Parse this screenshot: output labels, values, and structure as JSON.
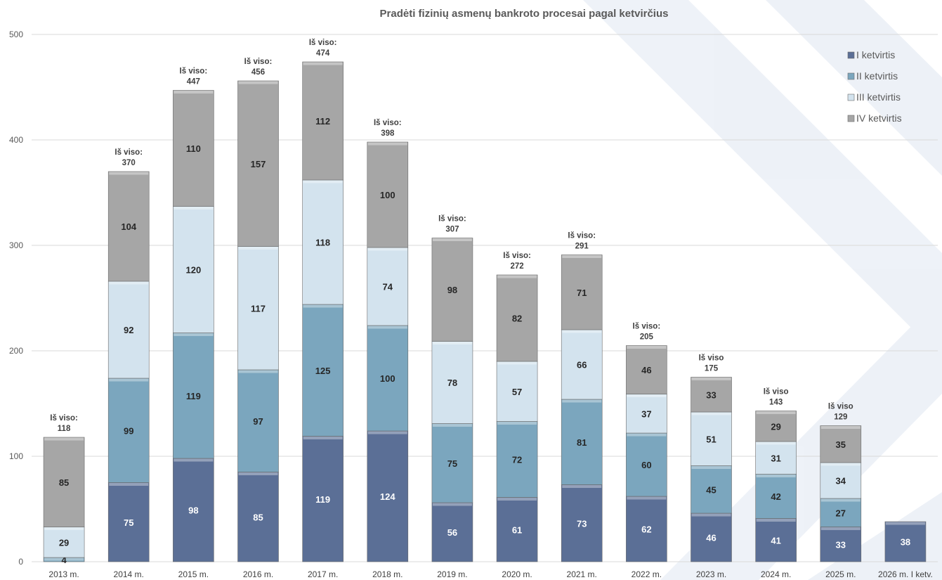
{
  "chart_data": {
    "type": "bar",
    "stacked": true,
    "title": "Pradėti fizinių asmenų bankroto procesai pagal ketvirčius",
    "categories": [
      "2013 m.",
      "2014 m.",
      "2015 m.",
      "2016 m.",
      "2017 m.",
      "2018 m.",
      "2019 m.",
      "2020 m.",
      "2021 m.",
      "2022 m.",
      "2023 m.",
      "2024 m.",
      "2025 m.",
      "2026 m. I ketv."
    ],
    "series": [
      {
        "name": "I ketvirtis",
        "color": "#5b6f96",
        "label_color": "#ffffff",
        "values": [
          0,
          75,
          98,
          85,
          119,
          124,
          56,
          61,
          73,
          62,
          46,
          41,
          33,
          38
        ]
      },
      {
        "name": "II ketvirtis",
        "color": "#7ba6be",
        "label_color": "#262626",
        "values": [
          4,
          99,
          119,
          97,
          125,
          100,
          75,
          72,
          81,
          60,
          45,
          42,
          27,
          null
        ]
      },
      {
        "name": "III ketvirtis",
        "color": "#d3e3ee",
        "label_color": "#262626",
        "values": [
          29,
          92,
          120,
          117,
          118,
          74,
          78,
          57,
          66,
          37,
          51,
          31,
          34,
          null
        ]
      },
      {
        "name": "IV ketvirtis",
        "color": "#a6a6a6",
        "label_color": "#262626",
        "values": [
          85,
          104,
          110,
          157,
          112,
          100,
          98,
          82,
          71,
          46,
          33,
          29,
          35,
          null
        ]
      }
    ],
    "point_labels": [
      [
        "",
        "75",
        "98",
        "85",
        "119",
        "124",
        "56",
        "61",
        "73",
        "62",
        "46",
        "41",
        "33",
        "38"
      ],
      [
        "4",
        "99",
        "119",
        "97",
        "125",
        "100",
        "75",
        "72",
        "81",
        "60",
        "45",
        "42",
        "27",
        ""
      ],
      [
        "29",
        "92",
        "120",
        "117",
        "118",
        "74",
        "78",
        "57",
        "66",
        "37",
        "51",
        "31",
        "34",
        ""
      ],
      [
        "85",
        "104",
        "110",
        "157",
        "112",
        "100",
        "98",
        "82",
        "71",
        "46",
        "33",
        "29",
        "35",
        ""
      ]
    ],
    "totals": [
      118,
      370,
      447,
      456,
      474,
      398,
      307,
      272,
      291,
      205,
      175,
      143,
      129,
      null
    ],
    "total_label_prefix": [
      "Iš viso:",
      "Iš viso:",
      "Iš viso:",
      "Iš viso:",
      "Iš viso:",
      "Iš viso:",
      "Iš viso:",
      "Iš viso:",
      "Iš viso:",
      "Iš viso:",
      "Iš viso",
      "Iš viso",
      "Iš viso",
      ""
    ],
    "yticks": [
      0,
      100,
      200,
      300,
      400,
      500
    ],
    "ylim": [
      0,
      500
    ],
    "grid": true,
    "legend_position": "top-right",
    "xlabel": "",
    "ylabel": ""
  }
}
